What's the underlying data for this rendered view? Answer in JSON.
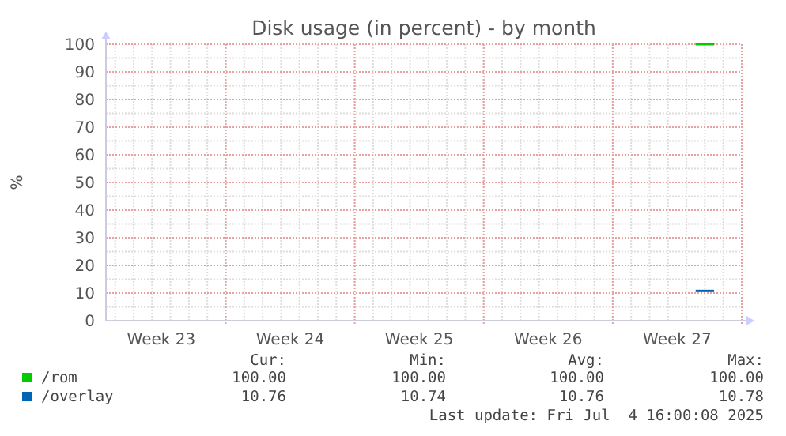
{
  "chart_data": {
    "type": "line",
    "title": "Disk usage (in percent) - by month",
    "ylabel": "%",
    "categories": [
      null,
      null,
      null,
      "Week 23",
      null,
      null,
      null,
      null,
      null,
      null,
      "Week 24",
      null,
      null,
      null,
      null,
      null,
      null,
      "Week 25",
      null,
      null,
      null,
      null,
      null,
      null,
      "Week 26",
      null,
      null,
      null,
      null,
      null,
      null,
      "Week 27",
      null,
      null
    ],
    "ylim": [
      0,
      100
    ],
    "yticks": [
      0,
      10,
      20,
      30,
      40,
      50,
      60,
      70,
      80,
      90,
      100
    ],
    "grid": true,
    "legend": "bottom",
    "line_style": "solid",
    "series": [
      {
        "name": "/rom",
        "color": "#00cc00",
        "values": [
          null,
          null,
          null,
          null,
          null,
          null,
          null,
          null,
          null,
          null,
          null,
          null,
          null,
          null,
          null,
          null,
          null,
          null,
          null,
          null,
          null,
          null,
          null,
          null,
          null,
          null,
          null,
          null,
          null,
          null,
          null,
          null,
          100,
          100
        ]
      },
      {
        "name": "/overlay",
        "color": "#0066b3",
        "values": [
          null,
          null,
          null,
          null,
          null,
          null,
          null,
          null,
          null,
          null,
          null,
          null,
          null,
          null,
          null,
          null,
          null,
          null,
          null,
          null,
          null,
          null,
          null,
          null,
          null,
          null,
          null,
          null,
          null,
          null,
          null,
          null,
          10.76,
          10.76
        ]
      }
    ],
    "annotations": [
      "Cur:",
      "Min:",
      "Avg:",
      "Max:",
      "100.00",
      "100.00",
      "100.00",
      "100.00",
      "10.76",
      "10.74",
      "10.76",
      "10.78",
      "Last update: Fri Jul  4 16:00:08 2025"
    ]
  }
}
